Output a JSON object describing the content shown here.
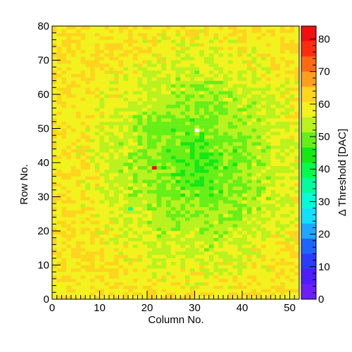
{
  "chart_data": {
    "type": "heatmap",
    "xlabel": "Column No.",
    "ylabel": "Row No.",
    "zlabel": "Δ Threshold [DAC]",
    "xlim": [
      0,
      52
    ],
    "ylim": [
      0,
      80
    ],
    "zlim": [
      0,
      84
    ],
    "x_bins": 52,
    "y_bins": 80,
    "x_ticks": [
      0,
      10,
      20,
      30,
      40,
      50
    ],
    "y_ticks": [
      0,
      10,
      20,
      30,
      40,
      50,
      60,
      70,
      80
    ],
    "z_ticks": [
      0,
      10,
      20,
      30,
      40,
      50,
      60,
      70,
      80
    ],
    "value_model": {
      "center_column": 30,
      "center_row": 40,
      "center_value": 46,
      "edge_value": 60
    },
    "notable_pixels": [
      {
        "column": 30,
        "row": 49,
        "value": null
      },
      {
        "column": 21,
        "row": 38,
        "value": 82
      },
      {
        "column": 16,
        "row": 26,
        "value": 36
      }
    ],
    "palette": [
      "#6b1fff",
      "#4f1dff",
      "#2a3bff",
      "#1e64ff",
      "#1ea8ff",
      "#12e0ff",
      "#00ffd8",
      "#00ff9c",
      "#00ff4a",
      "#15e812",
      "#66ef16",
      "#b9f21c",
      "#f2f21c",
      "#ffd41d",
      "#ff9f1b",
      "#ff6a12",
      "#ff2d0d",
      "#f01010"
    ]
  }
}
